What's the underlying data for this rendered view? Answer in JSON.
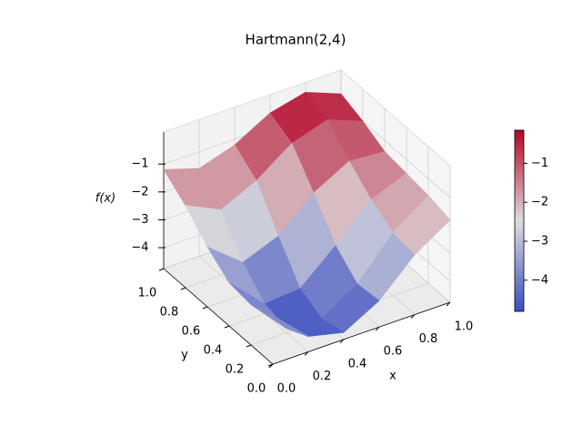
{
  "chart_data": {
    "type": "surface",
    "title": "Hartmann(2,4)",
    "x_label": "x",
    "y_label": "y",
    "z_label": "f(x)",
    "x": [
      0,
      0.2,
      0.4,
      0.6,
      0.8,
      1.0
    ],
    "y": [
      0,
      0.2,
      0.4,
      0.6,
      0.8,
      1.0
    ],
    "z": [
      [
        -3.0,
        -4.2,
        -4.5,
        -3.8,
        -2.6,
        -1.8
      ],
      [
        -3.3,
        -4.6,
        -4.7,
        -3.9,
        -2.5,
        -1.6
      ],
      [
        -3.2,
        -4.4,
        -4.3,
        -3.2,
        -2.0,
        -1.5
      ],
      [
        -2.6,
        -3.6,
        -3.1,
        -2.0,
        -1.3,
        -1.4
      ],
      [
        -1.8,
        -2.4,
        -1.8,
        -0.9,
        -0.5,
        -1.0
      ],
      [
        -1.2,
        -1.6,
        -1.2,
        -0.5,
        -0.2,
        -0.7
      ]
    ],
    "xlim": [
      0,
      1
    ],
    "ylim": [
      0,
      1
    ],
    "zlim": [
      -4.75,
      0.15
    ],
    "xticks": [
      {
        "value": 0,
        "label": "0.0"
      },
      {
        "value": 0.2,
        "label": "0.2"
      },
      {
        "value": 0.4,
        "label": "0.4"
      },
      {
        "value": 0.6,
        "label": "0.6"
      },
      {
        "value": 0.8,
        "label": "0.8"
      },
      {
        "value": 1,
        "label": "1.0"
      }
    ],
    "yticks": [
      {
        "value": 0,
        "label": "0.0"
      },
      {
        "value": 0.2,
        "label": "0.2"
      },
      {
        "value": 0.4,
        "label": "0.4"
      },
      {
        "value": 0.6,
        "label": "0.6"
      },
      {
        "value": 0.8,
        "label": "0.8"
      },
      {
        "value": 1,
        "label": "1.0"
      }
    ],
    "zticks": [
      {
        "value": -4,
        "label": "−4"
      },
      {
        "value": -3,
        "label": "−3"
      },
      {
        "value": -2,
        "label": "−2"
      },
      {
        "value": -1,
        "label": "−1"
      }
    ],
    "colorbar_lim": [
      -4.8,
      -0.15
    ],
    "colorbar_ticks": [
      {
        "value": -4,
        "label": "−4"
      },
      {
        "value": -3,
        "label": "−3"
      },
      {
        "value": -2,
        "label": "−2"
      },
      {
        "value": -1,
        "label": "−1"
      }
    ],
    "colormap": [
      "#3b4cc0",
      "#dddddd",
      "#b40426"
    ],
    "grid": true
  }
}
